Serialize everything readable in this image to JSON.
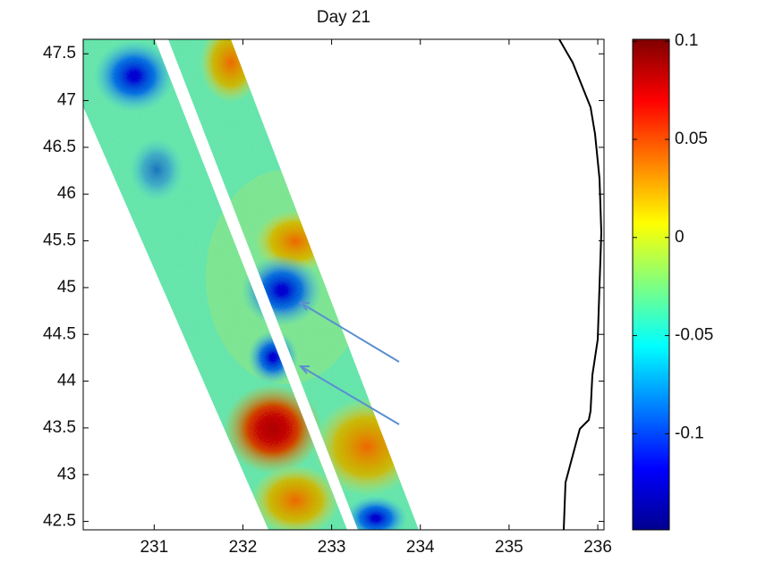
{
  "chart_data": {
    "type": "swath-map",
    "title": "Day 21",
    "xlim": [
      230.2,
      236.07
    ],
    "xticks": [
      231,
      232,
      233,
      234,
      235,
      236
    ],
    "ylim": [
      42.41,
      47.655
    ],
    "yticks": [
      42.5,
      43,
      43.5,
      44,
      44.5,
      45,
      45.5,
      46,
      46.5,
      47,
      47.5
    ],
    "colorbar": {
      "clim": [
        -0.149,
        0.101
      ],
      "ticks": [
        -0.1,
        -0.05,
        0,
        0.05,
        0.1
      ]
    }
  }
}
